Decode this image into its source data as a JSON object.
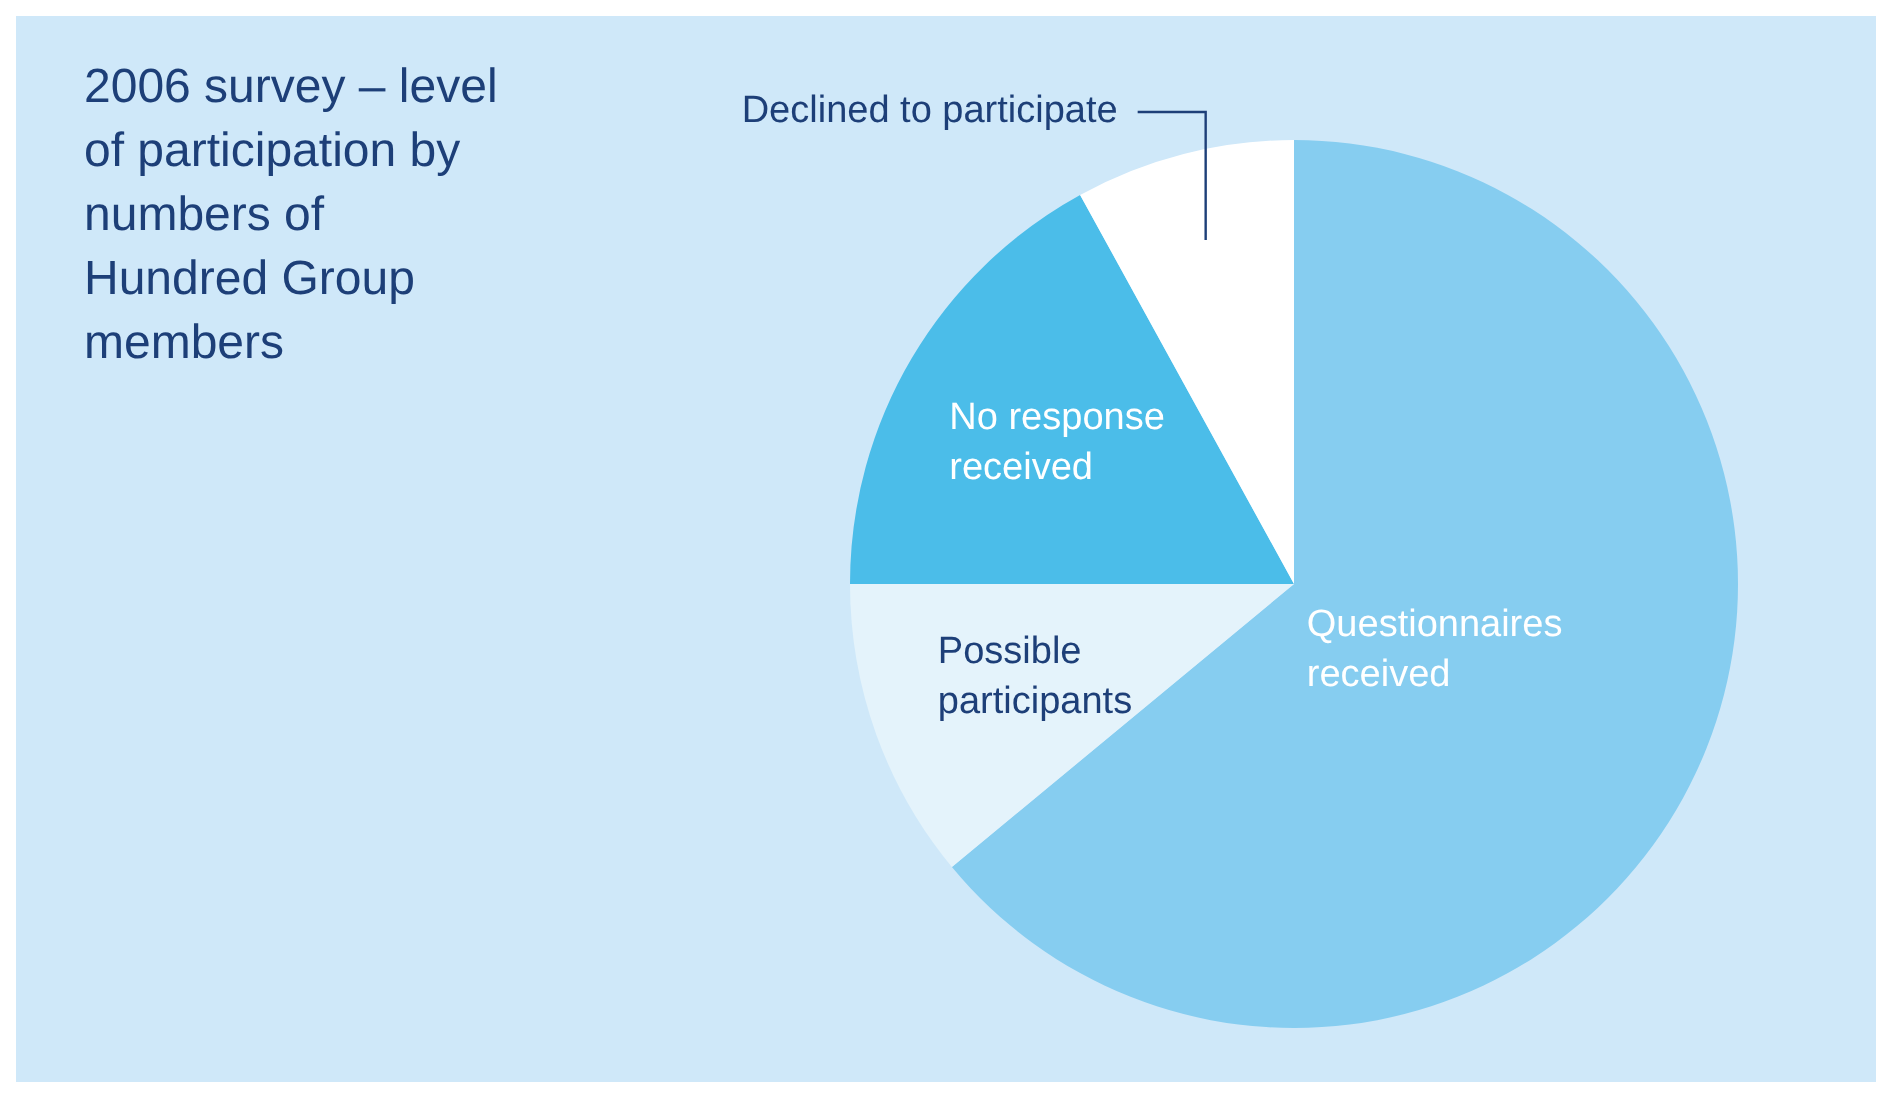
{
  "chart_data": {
    "type": "pie",
    "title": "2006 survey – level of participation by numbers of Hundred Group members",
    "categories": [
      "Questionnaires received",
      "Possible participants",
      "No response received",
      "Declined to participate"
    ],
    "values": [
      64,
      11,
      17,
      8
    ],
    "colors": [
      "#86cdf0",
      "#e4f3fb",
      "#4bbde9",
      "#ffffff"
    ],
    "legend": false
  }
}
